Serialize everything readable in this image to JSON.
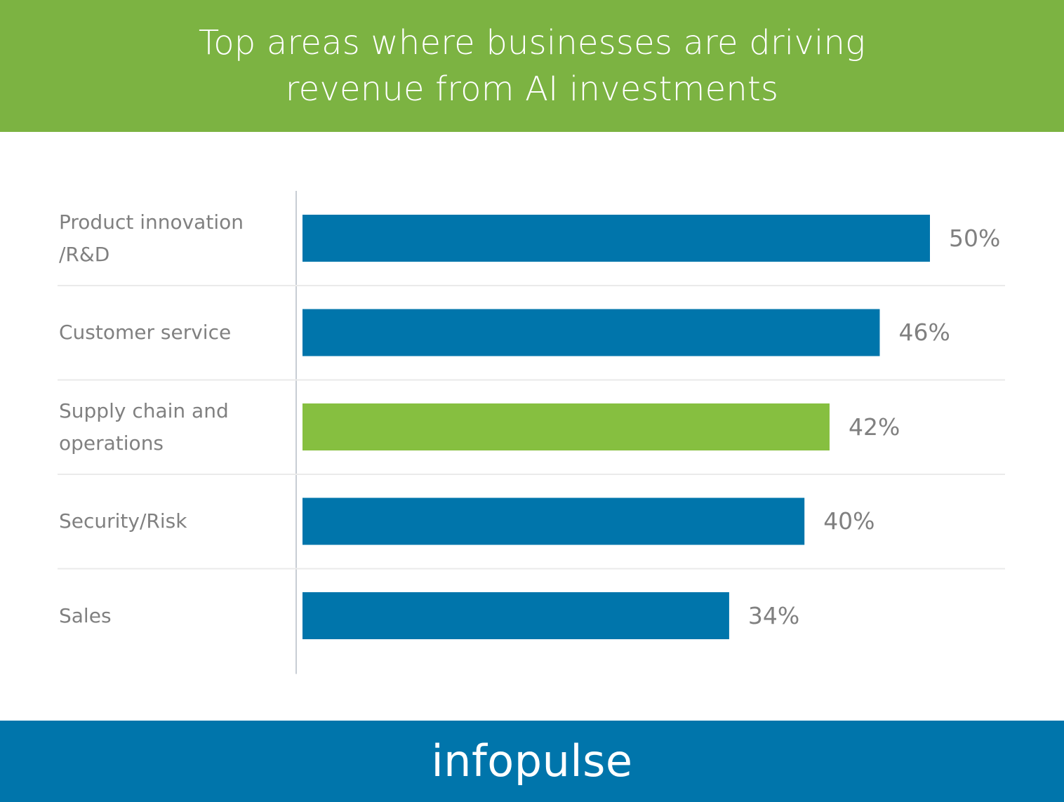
{
  "colors": {
    "header_bg": "#7cb342",
    "footer_bg": "#0075ab",
    "bar_primary": "#0075ab",
    "bar_highlight": "#86bf40",
    "label_text": "#808080",
    "divider": "#eaeaea",
    "axis_line": "#c8cdd4"
  },
  "footer": {
    "logo_text": "infopulse"
  },
  "chart_data": {
    "type": "bar",
    "orientation": "horizontal",
    "title": "Top areas where businesses are driving revenue from AI investments",
    "categories": [
      "Product innovation /R&D",
      "Customer service",
      "Supply chain and operations",
      "Security/Risk",
      "Sales"
    ],
    "values": [
      50,
      46,
      42,
      40,
      34
    ],
    "value_labels": [
      "50%",
      "46%",
      "42%",
      "40%",
      "34%"
    ],
    "highlighted_index": 2,
    "unit": "%",
    "xlim": [
      0,
      50
    ],
    "grid": false,
    "legend": "none"
  }
}
